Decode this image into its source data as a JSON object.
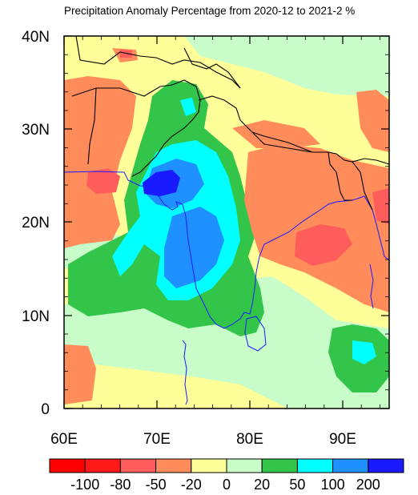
{
  "title": "Precipitation Anomaly Percentage from 2020-12 to 2021-2 %",
  "map": {
    "lon_range": [
      60,
      95
    ],
    "lat_range": [
      0,
      40
    ],
    "x_ticks": [
      "60E",
      "70E",
      "80E",
      "90E"
    ],
    "y_ticks": [
      "0",
      "10N",
      "20N",
      "30N",
      "40N"
    ]
  },
  "legend": {
    "colors": [
      "#ff0000",
      "#ff1a1a",
      "#ff5c5c",
      "#ff8c5a",
      "#ffff99",
      "#c8fcc8",
      "#33c44a",
      "#00ffff",
      "#1e90ff",
      "#1a1aff"
    ],
    "labels": [
      "-100",
      "-80",
      "-50",
      "-20",
      "0",
      "20",
      "50",
      "100",
      "200"
    ]
  },
  "colors": {
    "coast": "#1a1aff",
    "border": "#000000"
  }
}
